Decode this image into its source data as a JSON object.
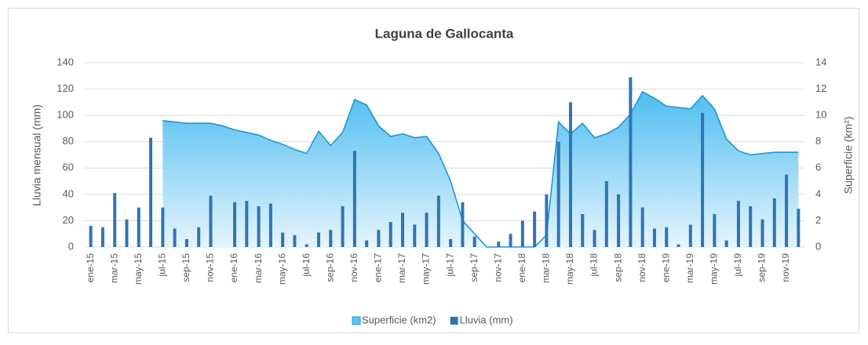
{
  "chart_data": {
    "type": "combo",
    "title": "Laguna de Gallocanta",
    "y_label": "Lluvia mensual (mm)",
    "y2_label": "Superficie (km²)",
    "categories": [
      "ene-15",
      null,
      "mar-15",
      null,
      "may-15",
      null,
      "jul-15",
      null,
      "sep-15",
      null,
      "nov-15",
      null,
      "ene-16",
      null,
      "mar-16",
      null,
      "may-16",
      null,
      "jul-16",
      null,
      "sep-16",
      null,
      "nov-16",
      null,
      "ene-17",
      null,
      "mar-17",
      null,
      "may-17",
      null,
      "jul-17",
      null,
      "sep-17",
      null,
      "nov-17",
      null,
      "ene-18",
      null,
      "mar-18",
      null,
      "may-18",
      null,
      "jul-18",
      null,
      "sep-18",
      null,
      "nov-18",
      null,
      "ene-19",
      null,
      "mar-19",
      null,
      "may-19",
      null,
      "jul-19",
      null,
      "sep-19",
      null,
      "nov-19",
      null
    ],
    "series": [
      {
        "name": "Superficie (km2)",
        "type": "area",
        "axis": "y2",
        "color": "#1e96d8",
        "fill": "#5cc4f0",
        "values": [
          null,
          null,
          null,
          null,
          null,
          null,
          9.6,
          9.5,
          9.4,
          9.4,
          9.4,
          9.2,
          8.9,
          8.7,
          8.5,
          8.1,
          7.8,
          7.4,
          7.1,
          8.8,
          7.7,
          8.7,
          11.2,
          10.8,
          9.2,
          8.4,
          8.6,
          8.3,
          8.4,
          7.1,
          5.0,
          2.0,
          1.0,
          0,
          0,
          0,
          0,
          0,
          0.9,
          9.5,
          8.6,
          9.4,
          8.3,
          8.6,
          9.1,
          10.1,
          11.8,
          11.3,
          10.7,
          10.6,
          10.5,
          11.5,
          10.5,
          8.2,
          7.3,
          7.0,
          7.1,
          7.2,
          7.2,
          7.2
        ]
      },
      {
        "name": "Lluvia (mm)",
        "type": "bar",
        "axis": "y",
        "color": "#2e75b6",
        "values": [
          16,
          15,
          41,
          21,
          30,
          83,
          30,
          14,
          6,
          15,
          39,
          0,
          34,
          35,
          31,
          33,
          11,
          9,
          2,
          11,
          13,
          31,
          73,
          5,
          13,
          19,
          26,
          17,
          26,
          39,
          6,
          34,
          8,
          0,
          4,
          10,
          20,
          27,
          40,
          80,
          110,
          25,
          13,
          50,
          40,
          129,
          30,
          14,
          15,
          2,
          17,
          102,
          25,
          5,
          35,
          31,
          21,
          37,
          55,
          29
        ]
      }
    ],
    "ylim": [
      0,
      140
    ],
    "yticks": [
      0,
      20,
      40,
      60,
      80,
      100,
      120,
      140
    ],
    "y2lim": [
      0,
      14
    ],
    "y2ticks": [
      0,
      2,
      4,
      6,
      8,
      10,
      12,
      14
    ],
    "grid": true,
    "legend": "bottom"
  }
}
